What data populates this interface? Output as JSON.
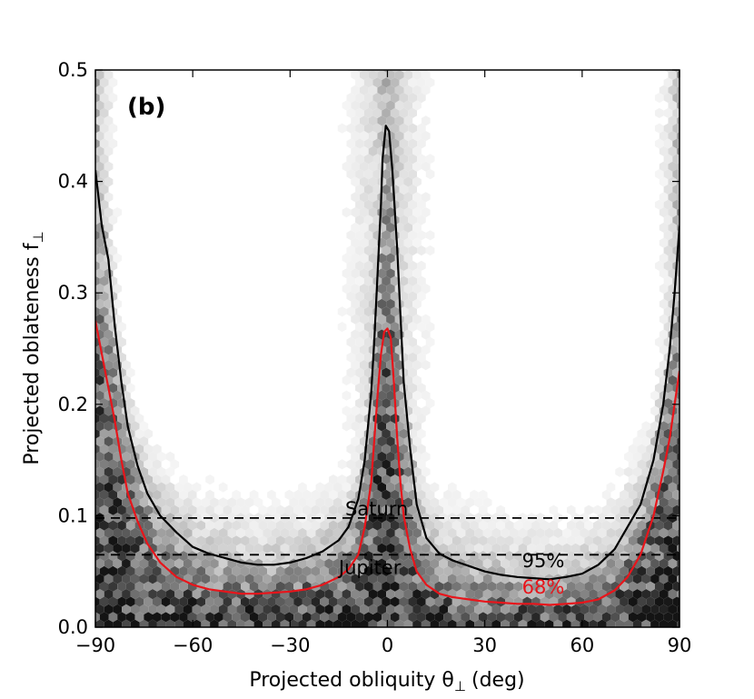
{
  "chart_data": {
    "type": "hexbin-density-contour",
    "panel_label": "(b)",
    "xlabel": "Projected obliquity θ",
    "xlabel_subscript": "⊥",
    "xlabel_units": "(deg)",
    "ylabel": "Projected oblateness f",
    "ylabel_subscript": "⊥",
    "xlim": [
      -90,
      90
    ],
    "ylim": [
      0.0,
      0.5
    ],
    "xticks": [
      -90,
      -60,
      -30,
      0,
      30,
      60,
      90
    ],
    "xtick_labels": [
      "−90",
      "−60",
      "−30",
      "0",
      "30",
      "60",
      "90"
    ],
    "yticks": [
      0.0,
      0.1,
      0.2,
      0.3,
      0.4,
      0.5
    ],
    "ytick_labels": [
      "0.0",
      "0.1",
      "0.2",
      "0.3",
      "0.4",
      "0.5"
    ],
    "reference_lines": [
      {
        "name": "Saturn",
        "y": 0.098
      },
      {
        "name": "Jupiter",
        "y": 0.065
      }
    ],
    "contours": [
      {
        "name": "95%",
        "color": "#000000",
        "points": [
          [
            -90,
            0.41
          ],
          [
            -88,
            0.36
          ],
          [
            -86,
            0.33
          ],
          [
            -84,
            0.27
          ],
          [
            -82,
            0.22
          ],
          [
            -80,
            0.18
          ],
          [
            -77,
            0.145
          ],
          [
            -74,
            0.12
          ],
          [
            -70,
            0.1
          ],
          [
            -65,
            0.085
          ],
          [
            -60,
            0.072
          ],
          [
            -55,
            0.066
          ],
          [
            -50,
            0.062
          ],
          [
            -45,
            0.058
          ],
          [
            -40,
            0.056
          ],
          [
            -35,
            0.056
          ],
          [
            -30,
            0.058
          ],
          [
            -25,
            0.062
          ],
          [
            -20,
            0.068
          ],
          [
            -15,
            0.078
          ],
          [
            -12,
            0.09
          ],
          [
            -9,
            0.115
          ],
          [
            -7,
            0.15
          ],
          [
            -5,
            0.21
          ],
          [
            -4,
            0.26
          ],
          [
            -3,
            0.32
          ],
          [
            -2,
            0.38
          ],
          [
            -1.5,
            0.42
          ],
          [
            -0.5,
            0.45
          ],
          [
            0.5,
            0.445
          ],
          [
            1.5,
            0.41
          ],
          [
            3,
            0.34
          ],
          [
            4,
            0.28
          ],
          [
            5,
            0.22
          ],
          [
            7,
            0.16
          ],
          [
            9,
            0.11
          ],
          [
            12,
            0.08
          ],
          [
            16,
            0.066
          ],
          [
            20,
            0.06
          ],
          [
            25,
            0.055
          ],
          [
            30,
            0.05
          ],
          [
            35,
            0.047
          ],
          [
            40,
            0.045
          ],
          [
            45,
            0.044
          ],
          [
            50,
            0.043
          ],
          [
            55,
            0.045
          ],
          [
            60,
            0.048
          ],
          [
            65,
            0.056
          ],
          [
            70,
            0.07
          ],
          [
            74,
            0.09
          ],
          [
            78,
            0.11
          ],
          [
            82,
            0.15
          ],
          [
            85,
            0.2
          ],
          [
            87,
            0.25
          ],
          [
            88.5,
            0.3
          ],
          [
            90,
            0.36
          ]
        ]
      },
      {
        "name": "68%",
        "color": "#e8151b",
        "points": [
          [
            -90,
            0.275
          ],
          [
            -88,
            0.245
          ],
          [
            -86,
            0.215
          ],
          [
            -84,
            0.185
          ],
          [
            -82,
            0.15
          ],
          [
            -80,
            0.12
          ],
          [
            -77,
            0.095
          ],
          [
            -74,
            0.075
          ],
          [
            -70,
            0.058
          ],
          [
            -65,
            0.045
          ],
          [
            -60,
            0.038
          ],
          [
            -55,
            0.034
          ],
          [
            -50,
            0.032
          ],
          [
            -45,
            0.03
          ],
          [
            -40,
            0.03
          ],
          [
            -35,
            0.031
          ],
          [
            -30,
            0.032
          ],
          [
            -25,
            0.034
          ],
          [
            -20,
            0.038
          ],
          [
            -15,
            0.045
          ],
          [
            -12,
            0.052
          ],
          [
            -9,
            0.065
          ],
          [
            -7,
            0.09
          ],
          [
            -5,
            0.13
          ],
          [
            -4,
            0.17
          ],
          [
            -3,
            0.21
          ],
          [
            -2,
            0.245
          ],
          [
            -1,
            0.265
          ],
          [
            0,
            0.268
          ],
          [
            1,
            0.26
          ],
          [
            2,
            0.22
          ],
          [
            3,
            0.17
          ],
          [
            4,
            0.13
          ],
          [
            5,
            0.1
          ],
          [
            7,
            0.07
          ],
          [
            9,
            0.05
          ],
          [
            12,
            0.038
          ],
          [
            16,
            0.03
          ],
          [
            20,
            0.027
          ],
          [
            25,
            0.025
          ],
          [
            30,
            0.023
          ],
          [
            35,
            0.022
          ],
          [
            40,
            0.021
          ],
          [
            45,
            0.021
          ],
          [
            50,
            0.02
          ],
          [
            55,
            0.021
          ],
          [
            60,
            0.022
          ],
          [
            65,
            0.025
          ],
          [
            70,
            0.033
          ],
          [
            74,
            0.045
          ],
          [
            78,
            0.065
          ],
          [
            82,
            0.1
          ],
          [
            85,
            0.14
          ],
          [
            87,
            0.17
          ],
          [
            88.5,
            0.2
          ],
          [
            90,
            0.23
          ]
        ]
      }
    ],
    "contour_labels": [
      {
        "text": "95%",
        "x": 48,
        "y": 0.054,
        "color": "#000000"
      },
      {
        "text": "68%",
        "x": 48,
        "y": 0.03,
        "color": "#e8151b"
      }
    ]
  }
}
